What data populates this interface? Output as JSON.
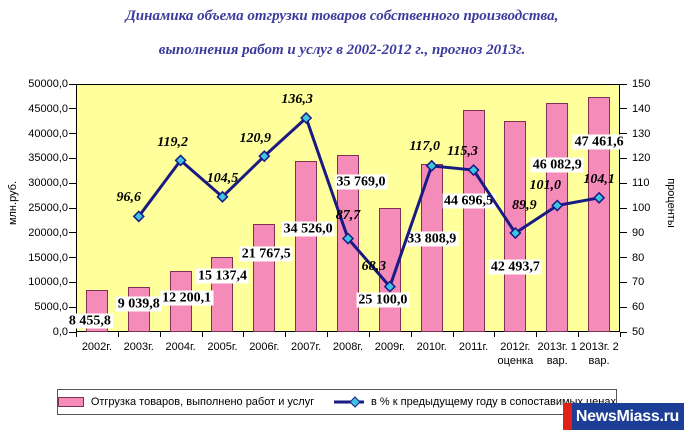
{
  "watermark": {
    "text": "NewsMiass.ru"
  },
  "chart_data": {
    "type": "combo-bar-line",
    "title_lines": [
      "Динамика объема отгрузки товаров собственного производства,",
      "выполнения работ и услуг в 2002-2012 г., прогноз 2013г."
    ],
    "categories": [
      [
        "2002г."
      ],
      [
        "2003г."
      ],
      [
        "2004г."
      ],
      [
        "2005г."
      ],
      [
        "2006г."
      ],
      [
        "2007г."
      ],
      [
        "2008г."
      ],
      [
        "2009г."
      ],
      [
        "2010г."
      ],
      [
        "2011г."
      ],
      [
        "2012г.",
        "оценка"
      ],
      [
        "2013г. 1",
        "вар."
      ],
      [
        "2013г. 2",
        "вар."
      ]
    ],
    "series": [
      {
        "name": "Отгрузка товаров, выполнено работ и услуг",
        "type": "bar",
        "axis": "left",
        "values": [
          8455.8,
          9039.8,
          12200.1,
          15137.4,
          21767.5,
          34526.0,
          35769.0,
          25100.0,
          33808.9,
          44696.5,
          42493.7,
          46082.9,
          47461.6
        ],
        "labels": [
          "8 455,8",
          "9 039,8",
          "12 200,1",
          "15 137,4",
          "21 767,5",
          "34 526,0",
          "35 769,0",
          "25 100,0",
          "33 808,9",
          "44 696,5",
          "42 493,7",
          "46 082,9",
          "47 461,6"
        ]
      },
      {
        "name": "в % к предыдущему году в сопоставимых ценах",
        "type": "line",
        "axis": "right",
        "values": [
          null,
          96.6,
          119.2,
          104.5,
          120.9,
          136.3,
          87.7,
          68.3,
          117.0,
          115.3,
          89.9,
          101.0,
          104.1
        ],
        "labels": [
          "",
          "96,6",
          "119,2",
          "104,5",
          "120,9",
          "136,3",
          "87,7",
          "68,3",
          "117,0",
          "115,3",
          "89,9",
          "101,0",
          "104,1"
        ]
      }
    ],
    "left_axis": {
      "title": "млн.руб.",
      "min": 0,
      "max": 50000,
      "step": 5000,
      "tick_labels": [
        "0,0",
        "5000,0",
        "10000,0",
        "15000,0",
        "20000,0",
        "25000,0",
        "30000,0",
        "35000,0",
        "40000,0",
        "45000,0",
        "50000,0"
      ]
    },
    "right_axis": {
      "title": "проценты",
      "min": 50,
      "max": 150,
      "step": 10,
      "tick_labels": [
        "50",
        "60",
        "70",
        "80",
        "90",
        "100",
        "110",
        "120",
        "130",
        "140",
        "150"
      ]
    },
    "legend": {
      "position": "bottom",
      "items": [
        "Отгрузка товаров, выполнено работ и услуг",
        "в % к предыдущему году в сопоставимых ценах"
      ]
    },
    "grid": "off",
    "colors": {
      "title": "#3b3b9e",
      "plot_background": "#ffff9c",
      "bar_fill": "#f48bb8",
      "bar_border": "#803055",
      "line": "#1a1a85",
      "marker_fill": "#3cc4e0",
      "marker_border": "#1a1a85",
      "watermark_background": "#1d3e96",
      "watermark_accent": "#e32017"
    }
  }
}
